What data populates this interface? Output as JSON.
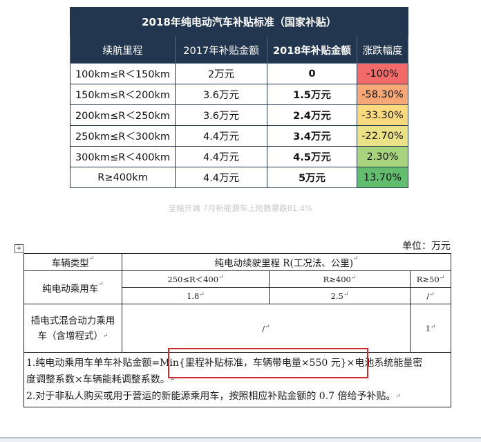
{
  "subsidy_table": {
    "title": "2018年纯电动汽车补贴标准（国家补贴）",
    "headers": [
      "续航里程",
      "2017年补贴金额",
      "2018年补贴金额",
      "涨跌幅度"
    ],
    "rows": [
      {
        "range": "100km≤R＜150km",
        "y2017": "2万元",
        "y2018": "0",
        "change": "-100%",
        "color": "#f36a6b"
      },
      {
        "range": "150km≤R＜200km",
        "y2017": "3.6万元",
        "y2018": "1.5万元",
        "change": "-58.30%",
        "color": "#f8a777"
      },
      {
        "range": "200km≤R＜250km",
        "y2017": "3.6万元",
        "y2018": "2.4万元",
        "change": "-33.30%",
        "color": "#fbd97e"
      },
      {
        "range": "250km≤R＜300km",
        "y2017": "4.4万元",
        "y2018": "3.4万元",
        "change": "-22.70%",
        "color": "#ebe187"
      },
      {
        "range": "300km≤R＜400km",
        "y2017": "4.4万元",
        "y2018": "4.5万元",
        "change": "2.30%",
        "color": "#a9d47e"
      },
      {
        "range": "R≥400km",
        "y2017": "4.4万元",
        "y2018": "5万元",
        "change": "13.70%",
        "color": "#62bd6f"
      }
    ]
  },
  "caption": "至暗开端 7月新能源车上险数暴跌81.4%",
  "doc": {
    "move_handle": "+",
    "unit": "单位：万元",
    "vehicle_type_label": "车辆类型",
    "range_header": "纯电动续驶里程 R(工况法、公里)",
    "bev_label": "纯电动乘用车",
    "bev_ranges": [
      "250≤R＜400",
      "R≥400",
      "R≥50"
    ],
    "bev_values": [
      "1.8",
      "2.5",
      "/"
    ],
    "phev_label": "插电式混合动力乘用车（含增程式）",
    "phev_values": [
      "/",
      "1"
    ],
    "note1_part1": "1.纯电动乘用车单车补贴金额=",
    "note1_highlight": "Min{里程补贴标准，车辆带电量×550 元}",
    "note1_part2": "×电池系统能量密",
    "note1_line2": "度调整系数×车辆能耗调整系数。",
    "note2": "2.对于非私人购买或用于营运的新能源乘用车，按照相应补贴金额的 0.7 倍给予补贴。",
    "para_mark": "↵"
  }
}
